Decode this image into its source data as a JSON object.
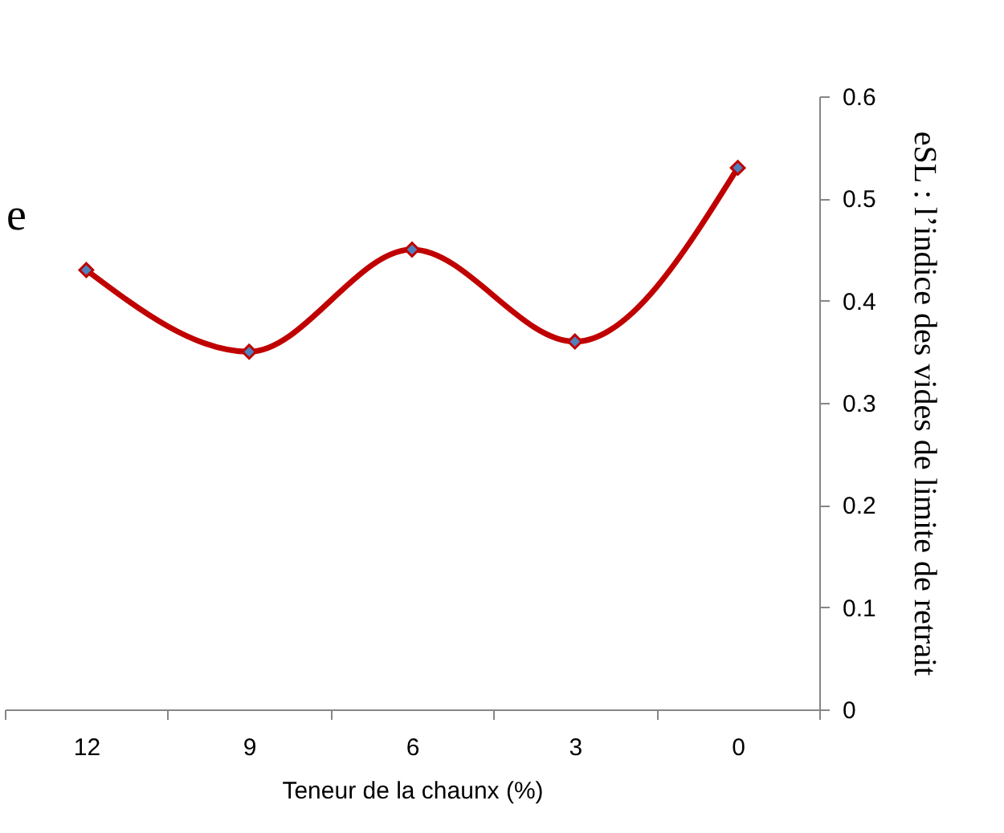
{
  "chart_data": {
    "type": "line",
    "xlabel": "Teneur de la chaunx (%)",
    "ylabel": "eSL : l’indice des vides de limite de retrait",
    "annotations": [
      "e"
    ],
    "categories": [
      "12",
      "9",
      "6",
      "3",
      "0"
    ],
    "series": [
      {
        "color": "#c00000",
        "values": [
          0.43,
          0.35,
          0.45,
          0.36,
          0.53
        ]
      }
    ],
    "ylim": [
      0,
      0.6
    ],
    "yticks": [
      0,
      0.1,
      0.2,
      0.3,
      0.4,
      0.5,
      0.6
    ],
    "marker": "diamond",
    "grid": false
  }
}
